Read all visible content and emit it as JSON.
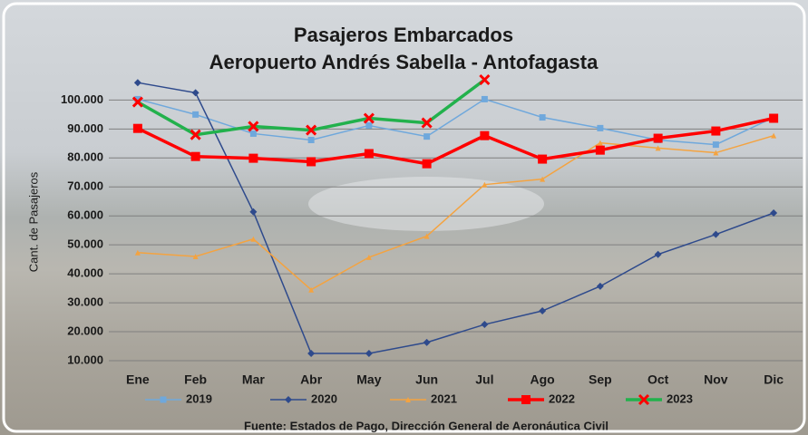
{
  "chart_data": {
    "type": "line",
    "title": "Pasajeros  Embarcados",
    "subtitle": "Aeropuerto Andrés Sabella - Antofagasta",
    "y_label": "Cant. de Pasajeros",
    "source": "Fuente: Estados de Pago, Dirección General de Aeronáutica Civil",
    "categories": [
      "Ene",
      "Feb",
      "Mar",
      "Abr",
      "May",
      "Jun",
      "Jul",
      "Ago",
      "Sep",
      "Oct",
      "Nov",
      "Dic"
    ],
    "ylim": [
      10000,
      107000
    ],
    "yticks": [
      {
        "value": 10000,
        "label": "10.000"
      },
      {
        "value": 20000,
        "label": "20.000"
      },
      {
        "value": 30000,
        "label": "30.000"
      },
      {
        "value": 40000,
        "label": "40.000"
      },
      {
        "value": 50000,
        "label": "50.000"
      },
      {
        "value": 60000,
        "label": "60.000"
      },
      {
        "value": 70000,
        "label": "70.000"
      },
      {
        "value": 80000,
        "label": "80.000"
      },
      {
        "value": 90000,
        "label": "90.000"
      },
      {
        "value": 100000,
        "label": "100.000"
      }
    ],
    "grid": true,
    "series": [
      {
        "name": "2019",
        "color": "#6fa8dc",
        "marker": "square",
        "values": [
          100300,
          95000,
          88400,
          86200,
          91200,
          87400,
          100300,
          94000,
          90300,
          86200,
          84600,
          94000
        ]
      },
      {
        "name": "2020",
        "color": "#2e4a8c",
        "marker": "diamond",
        "values": [
          106000,
          102500,
          61400,
          12500,
          12500,
          16300,
          22500,
          27200,
          35700,
          46700,
          53600,
          61000
        ]
      },
      {
        "name": "2021",
        "color": "#f4a340",
        "marker": "triangle",
        "values": [
          47300,
          46000,
          52000,
          34500,
          45700,
          53000,
          70800,
          72700,
          85200,
          83400,
          81800,
          87700
        ]
      },
      {
        "name": "2022",
        "color": "#ff0000",
        "marker": "bigsquare",
        "values": [
          90200,
          80500,
          79900,
          78700,
          81500,
          78000,
          87700,
          79600,
          82700,
          86800,
          89300,
          93700
        ]
      },
      {
        "name": "2023",
        "color": "#22b14c",
        "marker": "cross",
        "values": [
          99300,
          88000,
          90900,
          89600,
          93700,
          92100,
          107000,
          null,
          null,
          null,
          null,
          null
        ]
      }
    ]
  }
}
